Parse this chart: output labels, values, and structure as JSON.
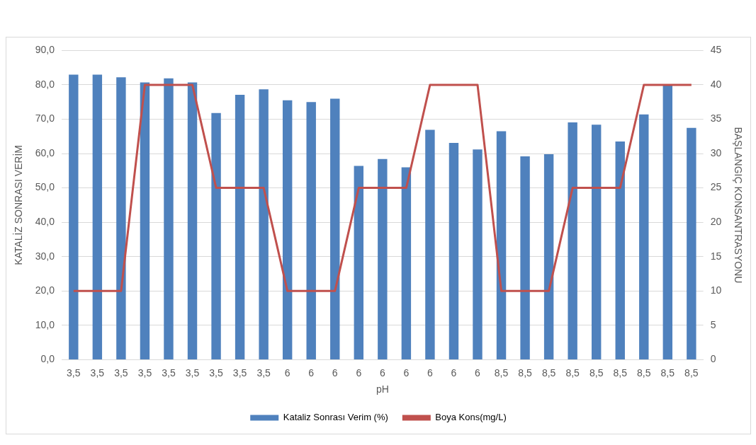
{
  "chart_data": {
    "type": "bar",
    "xlabel": "pH",
    "ylabel": "KATALİZ SONRASI VERİM",
    "y2label": "BAŞLANGIÇ KONSANTRASYONU",
    "categories": [
      "3,5",
      "3,5",
      "3,5",
      "3,5",
      "3,5",
      "3,5",
      "3,5",
      "3,5",
      "3,5",
      "6",
      "6",
      "6",
      "6",
      "6",
      "6",
      "6",
      "6",
      "6",
      "8,5",
      "8,5",
      "8,5",
      "8,5",
      "8,5",
      "8,5",
      "8,5",
      "8,5",
      "8,5"
    ],
    "series": [
      {
        "name": "Kataliz Sonrası Verim (%)",
        "type": "bar",
        "color": "#4f81bd",
        "values": [
          83.0,
          83.0,
          82.2,
          80.7,
          81.9,
          80.7,
          71.8,
          77.1,
          78.7,
          75.5,
          75.0,
          76.0,
          56.4,
          58.4,
          56.0,
          66.9,
          63.1,
          61.2,
          66.5,
          59.2,
          59.8,
          69.1,
          68.4,
          63.5,
          71.4,
          80.0,
          67.5
        ]
      },
      {
        "name": "Boya Kons(mg/L)",
        "type": "line",
        "axis": "y2",
        "color": "#c0504d",
        "values": [
          10,
          10,
          10,
          40,
          40,
          40,
          25,
          25,
          25,
          10,
          10,
          10,
          25,
          25,
          25,
          40,
          40,
          40,
          10,
          10,
          10,
          25,
          25,
          25,
          40,
          40,
          40
        ]
      }
    ],
    "ylim": [
      0,
      90
    ],
    "yticks": [
      {
        "value": 0,
        "label": "0,0"
      },
      {
        "value": 10,
        "label": "10,0"
      },
      {
        "value": 20,
        "label": "20,0"
      },
      {
        "value": 30,
        "label": "30,0"
      },
      {
        "value": 40,
        "label": "40,0"
      },
      {
        "value": 50,
        "label": "50,0"
      },
      {
        "value": 60,
        "label": "60,0"
      },
      {
        "value": 70,
        "label": "70,0"
      },
      {
        "value": 80,
        "label": "80,0"
      },
      {
        "value": 90,
        "label": "90,0"
      }
    ],
    "y2lim": [
      0,
      45
    ],
    "y2ticks": [
      0,
      5,
      10,
      15,
      20,
      25,
      30,
      35,
      40,
      45
    ],
    "grid": "y",
    "legend": "bottom",
    "marker": "none",
    "line_style": "solid"
  }
}
